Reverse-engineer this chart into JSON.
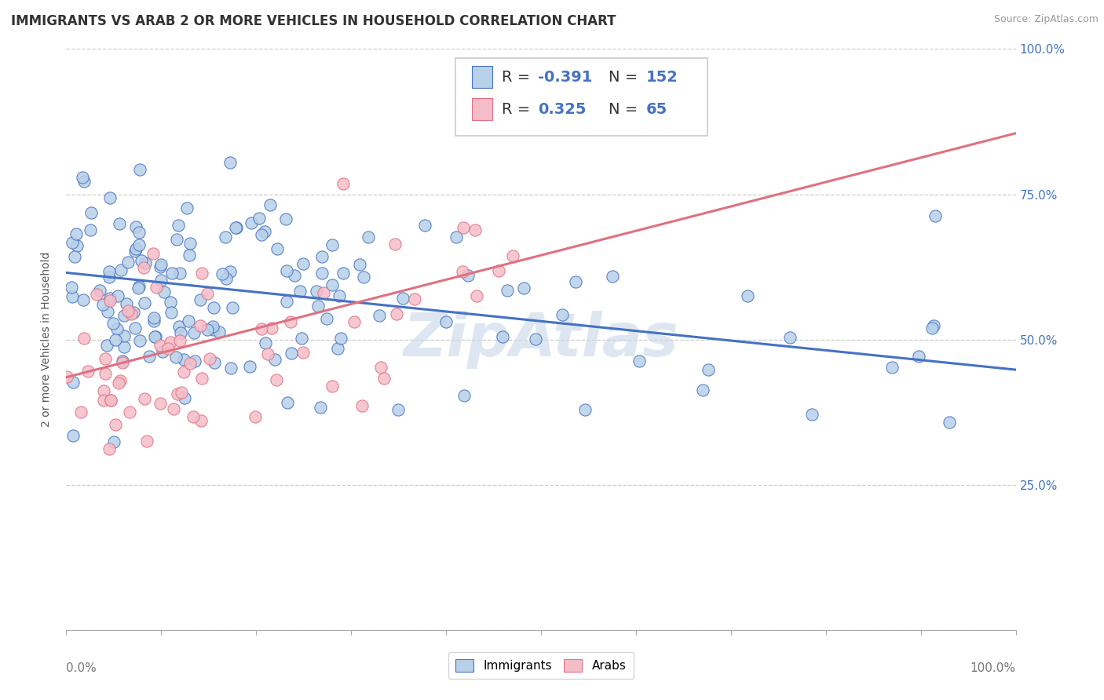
{
  "title": "IMMIGRANTS VS ARAB 2 OR MORE VEHICLES IN HOUSEHOLD CORRELATION CHART",
  "source": "Source: ZipAtlas.com",
  "ylabel": "2 or more Vehicles in Household",
  "xlim": [
    0,
    1
  ],
  "ylim": [
    0,
    1
  ],
  "xticklabels_outer": [
    "0.0%",
    "100.0%"
  ],
  "yticklabels": [
    "",
    "25.0%",
    "50.0%",
    "75.0%",
    "100.0%"
  ],
  "immigrants_R": -0.391,
  "immigrants_N": 152,
  "arabs_R": 0.325,
  "arabs_N": 65,
  "immigrants_color": "#b8d0e8",
  "arabs_color": "#f5bdc8",
  "immigrants_line_color": "#4472c4",
  "arabs_line_color": "#e07080",
  "legend_immigrants_label": "Immigrants",
  "legend_arabs_label": "Arabs",
  "watermark": "ZipAtlas",
  "background_color": "#ffffff",
  "grid_color": "#cccccc",
  "title_fontsize": 12,
  "axis_fontsize": 10,
  "tick_fontsize": 11,
  "legend_fontsize": 14,
  "watermark_color": "#c8d8e8",
  "watermark_fontsize": 55,
  "imm_line_x0": 0.0,
  "imm_line_y0": 0.615,
  "imm_line_x1": 1.0,
  "imm_line_y1": 0.448,
  "arab_line_x0": 0.0,
  "arab_line_y0": 0.435,
  "arab_line_x1": 1.0,
  "arab_line_y1": 0.855
}
